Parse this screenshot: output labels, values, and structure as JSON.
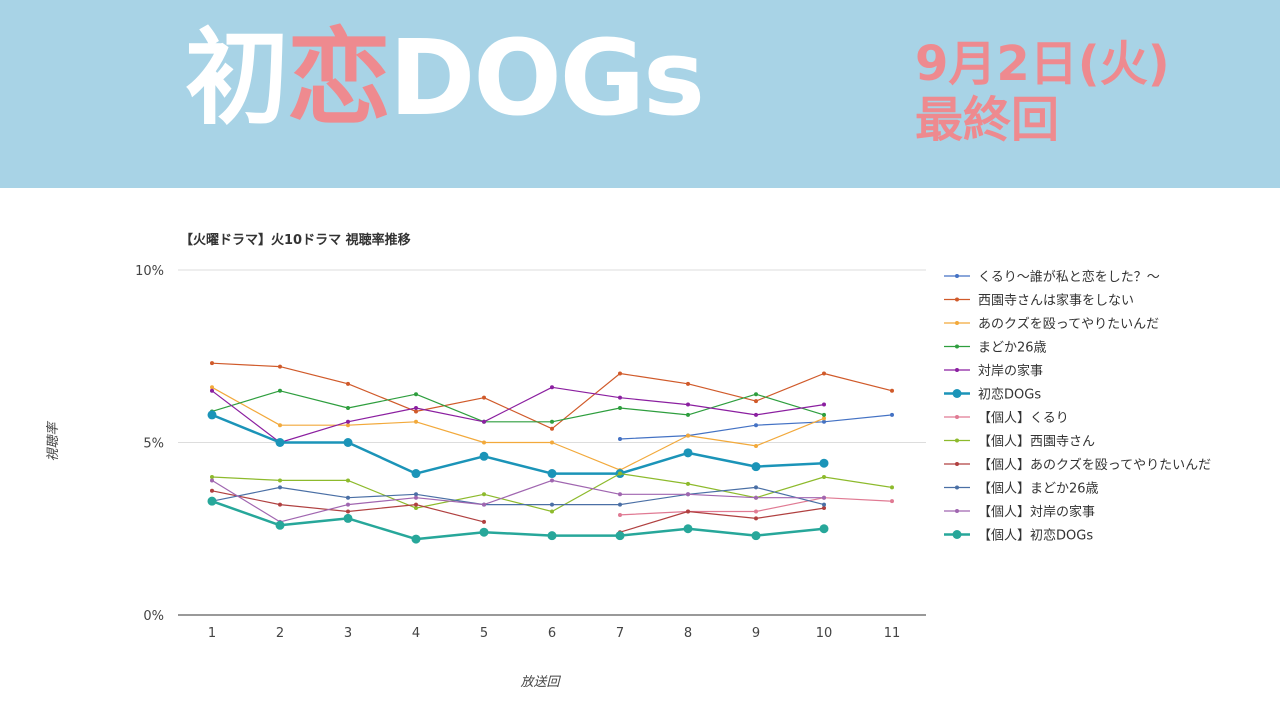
{
  "header": {
    "title_part1": "初",
    "title_accent": "恋",
    "title_part2": "DOGs",
    "air_date": "9月2日(火)",
    "episode_label": "最終回"
  },
  "chart_data": {
    "type": "line",
    "title": "【火曜ドラマ】火10ドラマ 視聴率推移",
    "xlabel": "放送回",
    "ylabel": "視聴率",
    "x": [
      1,
      2,
      3,
      4,
      5,
      6,
      7,
      8,
      9,
      10,
      11
    ],
    "ylim": [
      0,
      10
    ],
    "yticks": [
      "0%",
      "5%",
      "10%"
    ],
    "grid": true,
    "legend_position": "right",
    "series": [
      {
        "name": "くるり〜誰が私と恋をした？〜",
        "color": "#4472c4",
        "values": [
          null,
          null,
          null,
          null,
          null,
          null,
          5.1,
          5.2,
          5.5,
          5.6,
          5.8
        ]
      },
      {
        "name": "西園寺さんは家事をしない",
        "color": "#d05a2a",
        "values": [
          7.3,
          7.2,
          6.7,
          5.9,
          6.3,
          5.4,
          7.0,
          6.7,
          6.2,
          7.0,
          6.5
        ]
      },
      {
        "name": "あのクズを殴ってやりたいんだ",
        "color": "#f2a93b",
        "values": [
          6.6,
          5.5,
          5.5,
          5.6,
          5.0,
          5.0,
          4.2,
          5.2,
          4.9,
          5.7,
          null
        ]
      },
      {
        "name": "まどか26歳",
        "color": "#2e9e3e",
        "values": [
          5.9,
          6.5,
          6.0,
          6.4,
          5.6,
          5.6,
          6.0,
          5.8,
          6.4,
          5.8,
          null
        ]
      },
      {
        "name": "対岸の家事",
        "color": "#8b1fa0",
        "values": [
          6.5,
          5.0,
          5.6,
          6.0,
          5.6,
          6.6,
          6.3,
          6.1,
          5.8,
          6.1,
          null
        ]
      },
      {
        "name": "初恋DOGs",
        "color": "#1b94b8",
        "bold": true,
        "values": [
          5.8,
          5.0,
          5.0,
          4.1,
          4.6,
          4.1,
          4.1,
          4.7,
          4.3,
          4.4,
          null
        ]
      },
      {
        "name": "【個人】くるり",
        "color": "#e07a93",
        "values": [
          null,
          null,
          null,
          null,
          null,
          null,
          2.9,
          3.0,
          3.0,
          3.4,
          3.3
        ]
      },
      {
        "name": "【個人】西園寺さん",
        "color": "#8dba2c",
        "values": [
          4.0,
          3.9,
          3.9,
          3.1,
          3.5,
          3.0,
          4.1,
          3.8,
          3.4,
          4.0,
          3.7
        ]
      },
      {
        "name": "【個人】あのクズを殴ってやりたいんだ",
        "color": "#b04040",
        "values": [
          3.6,
          3.2,
          3.0,
          3.2,
          2.7,
          null,
          2.4,
          3.0,
          2.8,
          3.1,
          null
        ]
      },
      {
        "name": "【個人】まどか26歳",
        "color": "#4a6fa5",
        "values": [
          3.3,
          3.7,
          3.4,
          3.5,
          3.2,
          3.2,
          3.2,
          3.5,
          3.7,
          3.2,
          null
        ]
      },
      {
        "name": "【個人】対岸の家事",
        "color": "#a066b0",
        "values": [
          3.9,
          2.7,
          3.2,
          3.4,
          3.2,
          3.9,
          3.5,
          3.5,
          3.4,
          3.4,
          null
        ]
      },
      {
        "name": "【個人】初恋DOGs",
        "color": "#27a79a",
        "bold": true,
        "values": [
          3.3,
          2.6,
          2.8,
          2.2,
          2.4,
          2.3,
          2.3,
          2.5,
          2.3,
          2.5,
          null
        ]
      }
    ]
  }
}
